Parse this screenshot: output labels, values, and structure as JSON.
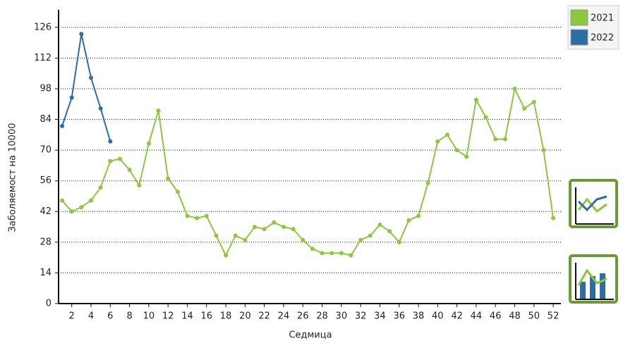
{
  "chart_data": {
    "type": "line",
    "x_label": "Седмица",
    "y_label": "Заболяемост на 10000",
    "x": [
      1,
      2,
      3,
      4,
      5,
      6,
      7,
      8,
      9,
      10,
      11,
      12,
      13,
      14,
      15,
      16,
      17,
      18,
      19,
      20,
      21,
      22,
      23,
      24,
      25,
      26,
      27,
      28,
      29,
      30,
      31,
      32,
      33,
      34,
      35,
      36,
      37,
      38,
      39,
      40,
      41,
      42,
      43,
      44,
      45,
      46,
      47,
      48,
      49,
      50,
      51,
      52
    ],
    "series": [
      {
        "name": "2021",
        "color": "#8dc63f",
        "values": [
          47,
          42,
          44,
          47,
          53,
          65,
          66,
          61,
          54,
          73,
          88,
          57,
          51,
          40,
          39,
          40,
          31,
          22,
          31,
          29,
          35,
          34,
          37,
          35,
          34,
          29,
          25,
          23,
          23,
          23,
          22,
          29,
          31,
          36,
          33,
          28,
          38,
          40,
          55,
          74,
          77,
          70,
          67,
          93,
          85,
          75,
          75,
          98,
          89,
          92,
          70,
          39
        ]
      },
      {
        "name": "2022",
        "color": "#2e6da4",
        "values": [
          81,
          94,
          123,
          103,
          89,
          74,
          null,
          null,
          null,
          null,
          null,
          null,
          null,
          null,
          null,
          null,
          null,
          null,
          null,
          null,
          null,
          null,
          null,
          null,
          null,
          null,
          null,
          null,
          null,
          null,
          null,
          null,
          null,
          null,
          null,
          null,
          null,
          null,
          null,
          null,
          null,
          null,
          null,
          null,
          null,
          null,
          null,
          null,
          null,
          null,
          null,
          null
        ]
      }
    ],
    "xlim": [
      0.63,
      52.8
    ],
    "xticks": [
      2,
      4,
      6,
      8,
      10,
      12,
      14,
      16,
      18,
      20,
      22,
      24,
      26,
      28,
      30,
      32,
      34,
      36,
      38,
      40,
      42,
      44,
      46,
      48,
      50,
      52
    ],
    "ylim": [
      0,
      134
    ],
    "yticks": [
      0,
      14,
      28,
      42,
      56,
      70,
      84,
      98,
      112,
      126
    ],
    "grid": true,
    "legend": "top-right"
  }
}
